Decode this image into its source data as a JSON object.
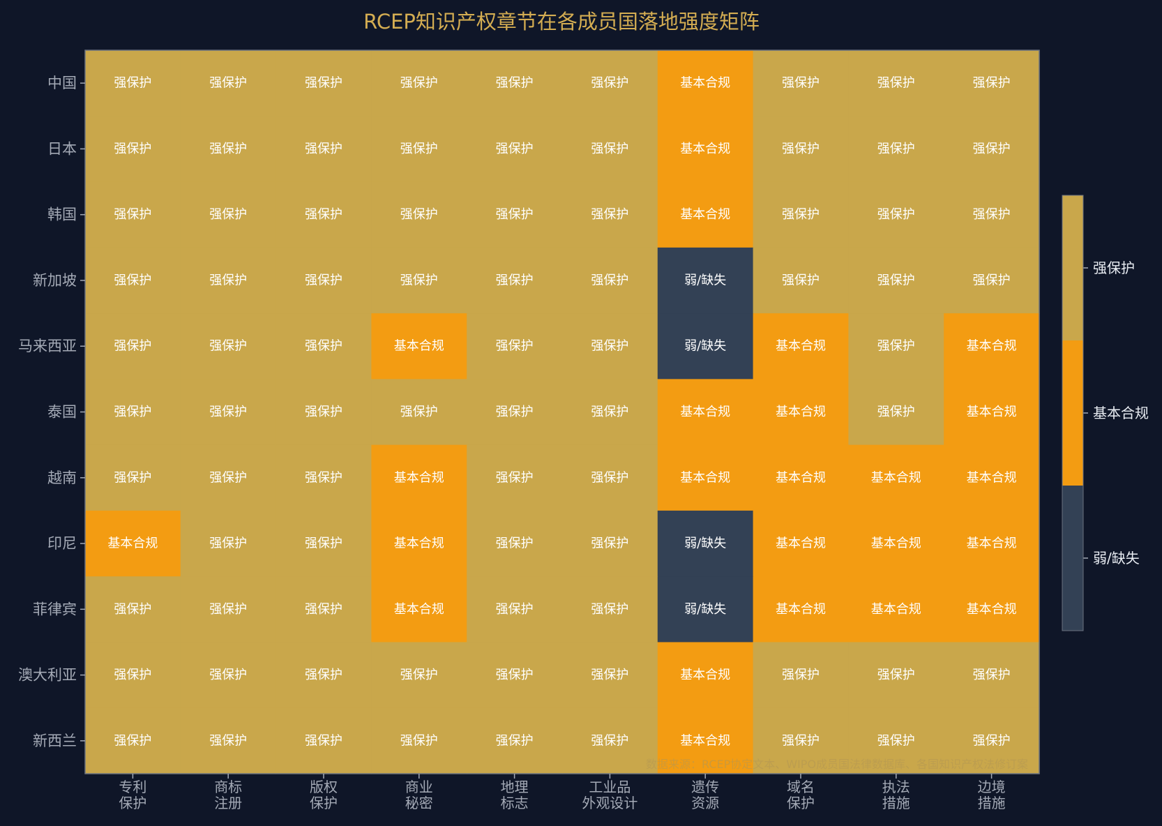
{
  "chart_data": {
    "type": "heatmap",
    "title": "RCEP知识产权章节在各成员国落地强度矩阵",
    "rows": [
      "中国",
      "日本",
      "韩国",
      "新加坡",
      "马来西亚",
      "泰国",
      "越南",
      "印尼",
      "菲律宾",
      "澳大利亚",
      "新西兰"
    ],
    "columns": [
      [
        "专利",
        "保护"
      ],
      [
        "商标",
        "注册"
      ],
      [
        "版权",
        "保护"
      ],
      [
        "商业",
        "秘密"
      ],
      [
        "地理",
        "标志"
      ],
      [
        "工业品",
        "外观设计"
      ],
      [
        "遗传",
        "资源"
      ],
      [
        "域名",
        "保护"
      ],
      [
        "执法",
        "措施"
      ],
      [
        "边境",
        "措施"
      ]
    ],
    "levels": [
      {
        "value": 0,
        "label": "弱/缺失",
        "color": "#334155"
      },
      {
        "value": 1,
        "label": "基本合规",
        "color": "#f39c12"
      },
      {
        "value": 2,
        "label": "强保护",
        "color": "#c9a74b"
      }
    ],
    "values": [
      [
        2,
        2,
        2,
        2,
        2,
        2,
        1,
        2,
        2,
        2
      ],
      [
        2,
        2,
        2,
        2,
        2,
        2,
        1,
        2,
        2,
        2
      ],
      [
        2,
        2,
        2,
        2,
        2,
        2,
        1,
        2,
        2,
        2
      ],
      [
        2,
        2,
        2,
        2,
        2,
        2,
        0,
        2,
        2,
        2
      ],
      [
        2,
        2,
        2,
        1,
        2,
        2,
        0,
        1,
        2,
        1
      ],
      [
        2,
        2,
        2,
        2,
        2,
        2,
        1,
        1,
        2,
        1
      ],
      [
        2,
        2,
        2,
        1,
        2,
        2,
        1,
        1,
        1,
        1
      ],
      [
        1,
        2,
        2,
        1,
        2,
        2,
        0,
        1,
        1,
        1
      ],
      [
        2,
        2,
        2,
        1,
        2,
        2,
        0,
        1,
        1,
        1
      ],
      [
        2,
        2,
        2,
        2,
        2,
        2,
        1,
        2,
        2,
        2
      ],
      [
        2,
        2,
        2,
        2,
        2,
        2,
        1,
        2,
        2,
        2
      ]
    ],
    "legend_position": "right",
    "grid": false,
    "source_note": "数据来源：RCEP协定文本、WIPO成员国法律数据库、各国知识产权法修订案"
  }
}
